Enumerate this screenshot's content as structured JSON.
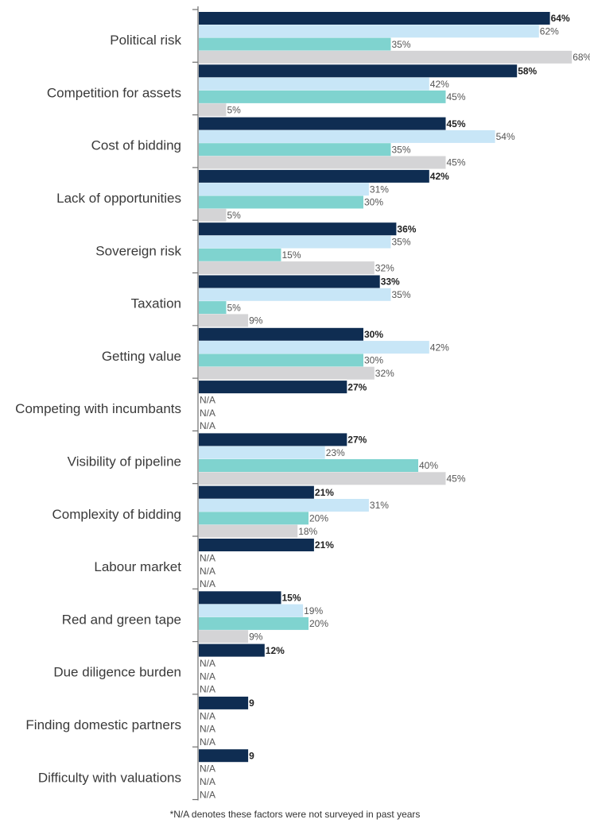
{
  "chart_data": {
    "type": "bar",
    "orientation": "horizontal",
    "unit": "%",
    "xlim": [
      0,
      70
    ],
    "grid": false,
    "legend": "none",
    "categories": [
      "Political risk",
      "Competition for assets",
      "Cost of bidding",
      "Lack of opportunities",
      "Sovereign risk",
      "Taxation",
      "Getting value",
      "Competing with incumbants",
      "Visibility of pipeline",
      "Complexity of bidding",
      "Labour market",
      "Red and green tape",
      "Due diligence burden",
      "Finding domestic partners",
      "Difficulty with valuations"
    ],
    "series": [
      {
        "color": "#0f2d52",
        "bold": true,
        "values": [
          64,
          58,
          45,
          42,
          36,
          33,
          30,
          27,
          27,
          21,
          21,
          15,
          12,
          9,
          9
        ],
        "labels": [
          "64%",
          "58%",
          "45%",
          "42%",
          "36%",
          "33%",
          "30%",
          "27%",
          "27%",
          "21%",
          "21%",
          "15%",
          "12%",
          "9",
          "9"
        ]
      },
      {
        "color": "#c8e6f7",
        "bold": false,
        "values": [
          62,
          42,
          54,
          31,
          35,
          35,
          42,
          null,
          23,
          31,
          null,
          19,
          null,
          null,
          null
        ],
        "labels": [
          "62%",
          "42%",
          "54%",
          "31%",
          "35%",
          "35%",
          "42%",
          "N/A",
          "23%",
          "31%",
          "N/A",
          "19%",
          "N/A",
          "N/A",
          "N/A"
        ]
      },
      {
        "color": "#7fd3cf",
        "bold": false,
        "values": [
          35,
          45,
          35,
          30,
          15,
          5,
          30,
          null,
          40,
          20,
          null,
          20,
          null,
          null,
          null
        ],
        "labels": [
          "35%",
          "45%",
          "35%",
          "30%",
          "15%",
          "5%",
          "30%",
          "N/A",
          "40%",
          "20%",
          "N/A",
          "20%",
          "N/A",
          "N/A",
          "N/A"
        ]
      },
      {
        "color": "#d4d4d6",
        "bold": false,
        "values": [
          68,
          5,
          45,
          5,
          32,
          9,
          32,
          null,
          45,
          18,
          null,
          9,
          null,
          null,
          null
        ],
        "labels": [
          "68%",
          "5%",
          "45%",
          "5%",
          "32%",
          "9%",
          "32%",
          "N/A",
          "45%",
          "18%",
          "N/A",
          "9%",
          "N/A",
          "N/A",
          "N/A"
        ]
      }
    ],
    "footnote": "*N/A denotes these factors were not surveyed in past years"
  }
}
